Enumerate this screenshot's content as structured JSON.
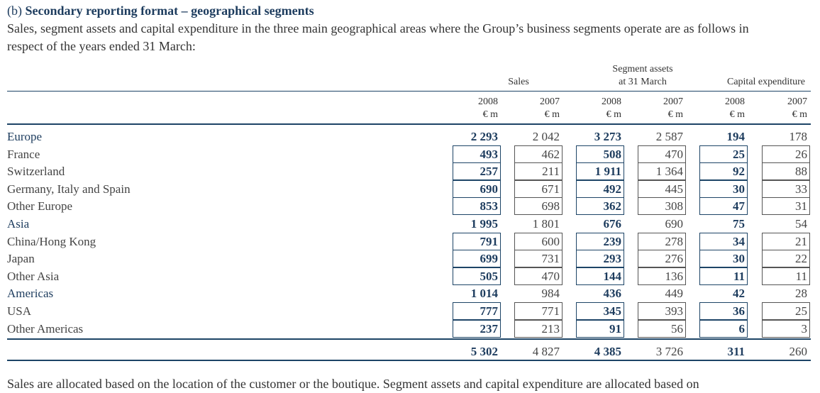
{
  "heading": {
    "label": "(b)",
    "title": "Secondary reporting format – geographical segments"
  },
  "intro": "Sales, segment assets and capital expenditure in the three main geographical areas where the Group’s business segments operate are as follows in respect of the years ended 31 March:",
  "table": {
    "groups": [
      {
        "lines": [
          "Sales"
        ]
      },
      {
        "lines": [
          "Segment assets",
          "at 31 March"
        ]
      },
      {
        "lines": [
          "Capital expenditure"
        ]
      }
    ],
    "columns": [
      {
        "year": "2008",
        "unit": "€ m"
      },
      {
        "year": "2007",
        "unit": "€ m"
      },
      {
        "year": "2008",
        "unit": "€ m"
      },
      {
        "year": "2007",
        "unit": "€ m"
      },
      {
        "year": "2008",
        "unit": "€ m"
      },
      {
        "year": "2007",
        "unit": "€ m"
      }
    ],
    "regions": [
      {
        "name": "Europe",
        "values": [
          "2 293",
          "2 042",
          "3 273",
          "2 587",
          "194",
          "178"
        ],
        "countries": [
          {
            "name": "France",
            "values": [
              "493",
              "462",
              "508",
              "470",
              "25",
              "26"
            ]
          },
          {
            "name": "Switzerland",
            "values": [
              "257",
              "211",
              "1 911",
              "1 364",
              "92",
              "88"
            ]
          },
          {
            "name": "Germany, Italy and Spain",
            "values": [
              "690",
              "671",
              "492",
              "445",
              "30",
              "33"
            ]
          },
          {
            "name": "Other Europe",
            "values": [
              "853",
              "698",
              "362",
              "308",
              "47",
              "31"
            ]
          }
        ]
      },
      {
        "name": "Asia",
        "values": [
          "1 995",
          "1 801",
          "676",
          "690",
          "75",
          "54"
        ],
        "countries": [
          {
            "name": "China/Hong Kong",
            "values": [
              "791",
              "600",
              "239",
              "278",
              "34",
              "21"
            ]
          },
          {
            "name": "Japan",
            "values": [
              "699",
              "731",
              "293",
              "276",
              "30",
              "22"
            ]
          },
          {
            "name": "Other Asia",
            "values": [
              "505",
              "470",
              "144",
              "136",
              "11",
              "11"
            ]
          }
        ]
      },
      {
        "name": "Americas",
        "values": [
          "1 014",
          "984",
          "436",
          "449",
          "42",
          "28"
        ],
        "countries": [
          {
            "name": "USA",
            "values": [
              "777",
              "771",
              "345",
              "393",
              "36",
              "25"
            ]
          },
          {
            "name": "Other Americas",
            "values": [
              "237",
              "213",
              "91",
              "56",
              "6",
              "3"
            ]
          }
        ]
      }
    ],
    "total": [
      "5 302",
      "4 827",
      "4 385",
      "3 726",
      "311",
      "260"
    ]
  },
  "footer": "Sales are allocated based on the location of the customer or the boutique. Segment assets and capital expenditure are allocated based on"
}
